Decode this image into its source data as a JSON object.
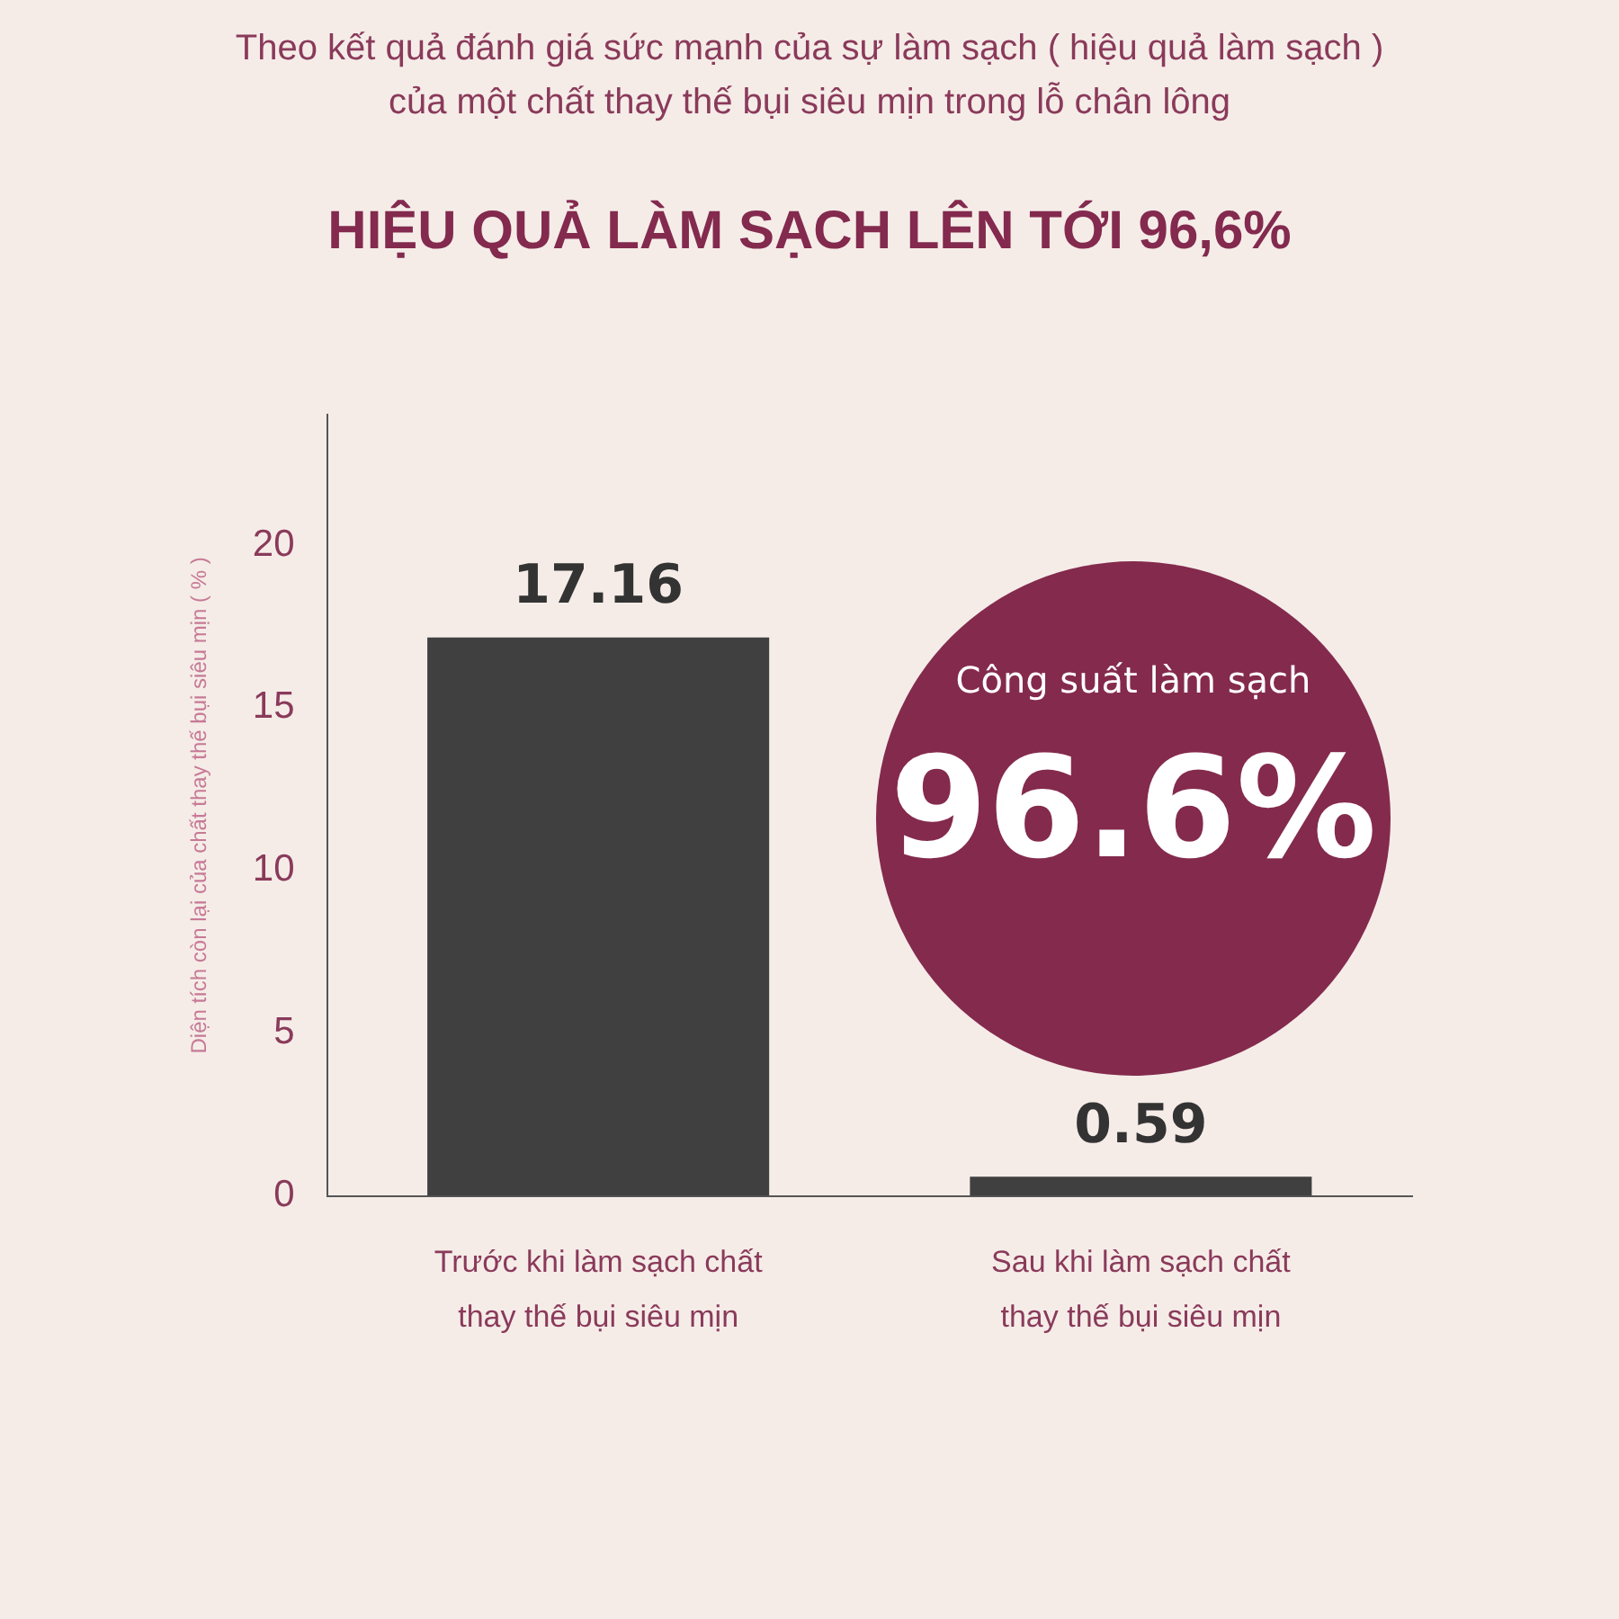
{
  "chart_data": {
    "type": "bar",
    "subtitle": "Theo kết quả đánh giá sức mạnh của sự làm sạch ( hiệu quả làm sạch )\ncủa một chất thay thế bụi siêu mịn trong lỗ chân lông",
    "title": "HIỆU QUẢ LÀM SẠCH LÊN TỚI 96,6%",
    "ylabel": "Diện tích còn lại của chất thay thế bụi siêu mịn ( % )",
    "categories": [
      "Trước khi làm sạch chất thay thế bụi siêu mịn",
      "Sau khi làm sạch chất thay thế bụi siêu mịn"
    ],
    "values": [
      17.16,
      0.59
    ],
    "color": "#404040",
    "data_labels": true,
    "ylim": [
      0,
      24
    ],
    "yticks": [
      0,
      5,
      10,
      15,
      20
    ],
    "grid": false,
    "legend": false,
    "annotations": [
      "Công suất làm sạch",
      "96.6%"
    ]
  }
}
